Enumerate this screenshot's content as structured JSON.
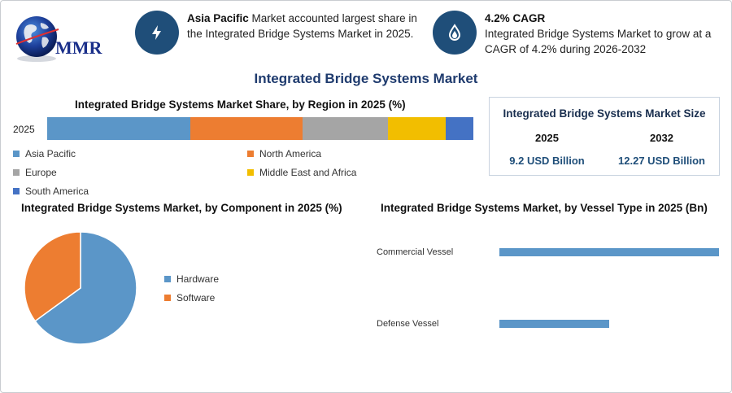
{
  "brand": {
    "logo_text": "MMR"
  },
  "callouts": [
    {
      "bold": "Asia Pacific",
      "text": " Market accounted largest share in the Integrated Bridge Systems Market in 2025.",
      "icon": "lightning-bolt-icon"
    },
    {
      "bold": "4.2% CAGR",
      "text": "Integrated Bridge Systems Market to grow at a CAGR of 4.2% during 2026-2032",
      "icon": "flame-drop-icon"
    }
  ],
  "main_title": "Integrated Bridge Systems Market",
  "size_box": {
    "title": "Integrated Bridge Systems Market Size",
    "years": [
      "2025",
      "2032"
    ],
    "values": [
      "9.2 USD Billion",
      "12.27 USD Billion"
    ]
  },
  "colors": {
    "blue": "#5b96c8",
    "orange": "#ed7d31",
    "gray": "#a5a5a5",
    "yellow": "#f2be00",
    "dark_blue": "#4472c4",
    "navy": "#1f4e79"
  },
  "chart_data": [
    {
      "type": "bar",
      "orientation": "horizontal-stacked",
      "title": "Integrated Bridge Systems Market Share, by Region in 2025 (%)",
      "categories": [
        "2025"
      ],
      "series": [
        {
          "name": "Asia Pacific",
          "values": [
            33.5
          ],
          "color": "#5b96c8"
        },
        {
          "name": "North America",
          "values": [
            26.5
          ],
          "color": "#ed7d31"
        },
        {
          "name": "Europe",
          "values": [
            20
          ],
          "color": "#a5a5a5"
        },
        {
          "name": "Middle East and Africa",
          "values": [
            13.5
          ],
          "color": "#f2be00"
        },
        {
          "name": "South America",
          "values": [
            6.5
          ],
          "color": "#4472c4"
        }
      ]
    },
    {
      "type": "pie",
      "title": "Integrated Bridge Systems Market, by Component in 2025 (%)",
      "labels": [
        "Hardware",
        "Software"
      ],
      "values": [
        65,
        35
      ],
      "colors": [
        "#5b96c8",
        "#ed7d31"
      ]
    },
    {
      "type": "bar",
      "orientation": "horizontal",
      "title": "Integrated Bridge Systems Market, by Vessel Type in 2025 (Bn)",
      "categories": [
        "Commercial Vessel",
        "Defense Vessel"
      ],
      "values": [
        6.0,
        3.0
      ],
      "color": "#5b96c8"
    }
  ]
}
